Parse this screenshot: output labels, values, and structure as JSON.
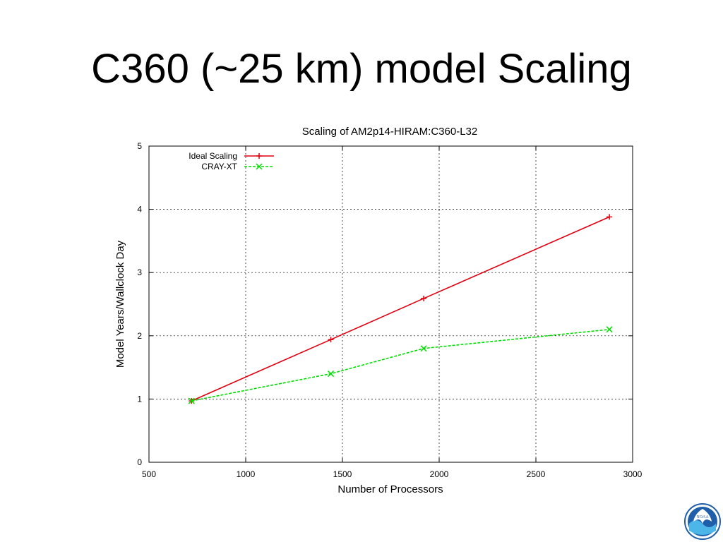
{
  "slide": {
    "title": "C360 (~25 km) model Scaling"
  },
  "chart_data": {
    "type": "line",
    "title": "Scaling of AM2p14-HIRAM:C360-L32",
    "xlabel": "Number of Processors",
    "ylabel": "Model Years/Wallclock Day",
    "xlim": [
      500,
      3000
    ],
    "ylim": [
      0,
      5
    ],
    "xticks": [
      500,
      1000,
      1500,
      2000,
      2500,
      3000
    ],
    "yticks": [
      0,
      1,
      2,
      3,
      4,
      5
    ],
    "grid": true,
    "legend_position": "top-left",
    "series": [
      {
        "name": "Ideal Scaling",
        "color": "#e0000f",
        "line_style": "solid",
        "marker": "plus",
        "x": [
          720,
          1440,
          1920,
          2880
        ],
        "y": [
          0.97,
          1.94,
          2.59,
          3.88
        ]
      },
      {
        "name": "CRAY-XT",
        "color": "#00dd00",
        "line_style": "dashed",
        "marker": "x",
        "x": [
          720,
          1440,
          1920,
          2880
        ],
        "y": [
          0.97,
          1.4,
          1.8,
          2.1
        ]
      }
    ]
  },
  "logo": {
    "icon": "noaa-logo-icon",
    "text": "NOAA"
  }
}
